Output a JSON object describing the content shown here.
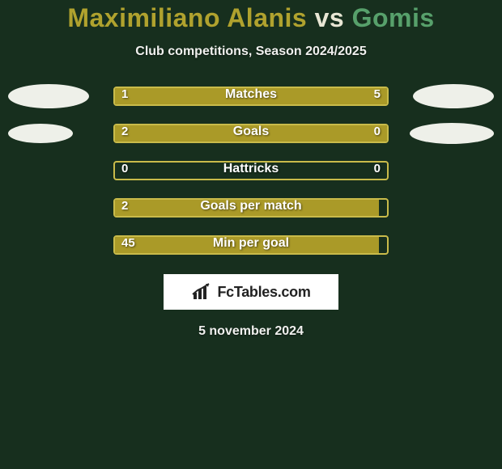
{
  "background_color": "#172f1e",
  "title": {
    "player1": "Maximiliano Alanis",
    "vs": "vs",
    "player2": "Gomis",
    "fontsize": 32,
    "p1_color": "#b0a22e",
    "vs_color": "#e8e6d4",
    "p2_color": "#57a06b"
  },
  "subtitle": {
    "text": "Club competitions, Season 2024/2025",
    "fontsize": 16,
    "color": "#f0f0ee"
  },
  "comparison": {
    "bar_track_color": "#172f1e",
    "bar_left_color": "#aa9a28",
    "bar_right_color": "#aa9a28",
    "bar_border_color": "#c9bb4a",
    "value_color": "#ffffff",
    "metric_color": "#ffffff",
    "ellipse_left_color": "#eef0e9",
    "ellipse_right_color": "#eef0e9",
    "rows": [
      {
        "metric": "Matches",
        "left": "1",
        "right": "5",
        "left_pct": 18,
        "right_pct": 82,
        "ellipse_left_w": 100,
        "ellipse_left_h": 30,
        "ellipse_right_w": 100,
        "ellipse_right_h": 30
      },
      {
        "metric": "Goals",
        "left": "2",
        "right": "0",
        "left_pct": 77,
        "right_pct": 23,
        "ellipse_left_w": 80,
        "ellipse_left_h": 24,
        "ellipse_right_w": 104,
        "ellipse_right_h": 26
      },
      {
        "metric": "Hattricks",
        "left": "0",
        "right": "0",
        "left_pct": 0,
        "right_pct": 0,
        "ellipse_left_w": 0,
        "ellipse_left_h": 0,
        "ellipse_right_w": 0,
        "ellipse_right_h": 0
      },
      {
        "metric": "Goals per match",
        "left": "2",
        "right": "",
        "left_pct": 97,
        "right_pct": 0,
        "ellipse_left_w": 0,
        "ellipse_left_h": 0,
        "ellipse_right_w": 0,
        "ellipse_right_h": 0
      },
      {
        "metric": "Min per goal",
        "left": "45",
        "right": "",
        "left_pct": 97,
        "right_pct": 0,
        "ellipse_left_w": 0,
        "ellipse_left_h": 0,
        "ellipse_right_w": 0,
        "ellipse_right_h": 0
      }
    ]
  },
  "brand": {
    "text": "FcTables.com"
  },
  "date": {
    "text": "5 november 2024",
    "fontsize": 16,
    "color": "#f0f0ee"
  }
}
